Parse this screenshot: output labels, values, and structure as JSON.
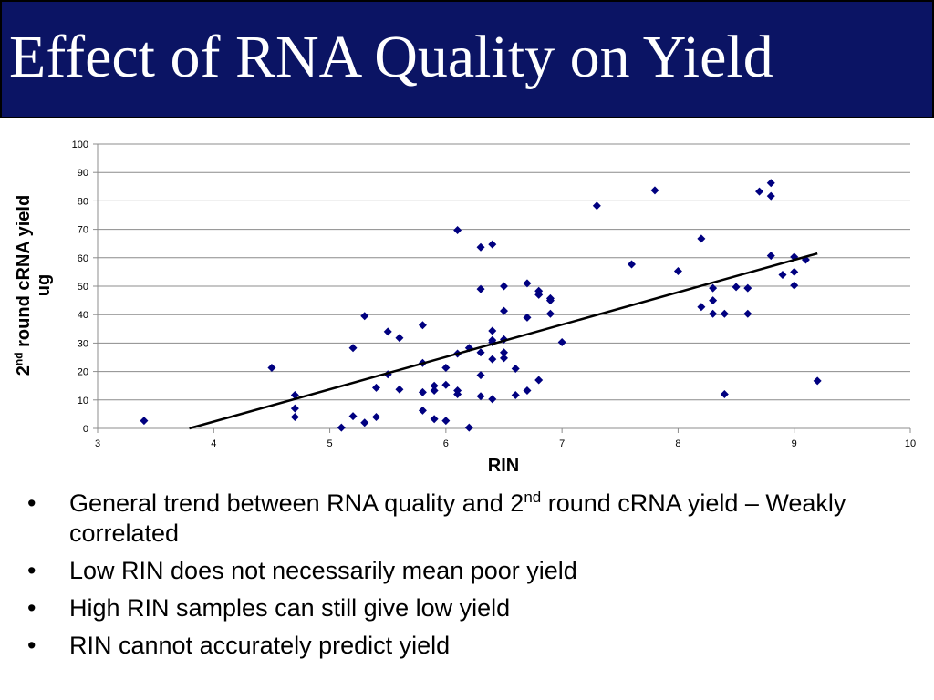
{
  "slide": {
    "title": "Effect of RNA Quality on Yield",
    "colors": {
      "title_bg": "#0b1464",
      "title_text": "#ffffff",
      "marker": "#000080",
      "trendline": "#000000"
    },
    "bullet_marker": "•",
    "bullets": [
      {
        "pre": "General trend between RNA quality and 2",
        "sup": "nd",
        "post": " round cRNA yield – Weakly correlated"
      },
      {
        "pre": "Low RIN does not necessarily mean poor yield"
      },
      {
        "pre": "High RIN samples can still give low yield"
      },
      {
        "pre": "RIN cannot accurately predict yield"
      }
    ]
  },
  "chart_data": {
    "type": "scatter",
    "title": "",
    "xlabel": "RIN",
    "ylabel_parts": {
      "pre": "2",
      "sup": "nd",
      "post": " round cRNA yield",
      "line2": "ug"
    },
    "xlim": [
      3,
      10
    ],
    "ylim": [
      0,
      100
    ],
    "xticks": [
      3,
      4,
      5,
      6,
      7,
      8,
      9,
      10
    ],
    "yticks": [
      0,
      10,
      20,
      30,
      40,
      50,
      60,
      70,
      80,
      90,
      100
    ],
    "grid": "horizontal",
    "legend": "none",
    "marker": "diamond",
    "trendline": {
      "type": "linear",
      "x": [
        3.79,
        9.2
      ],
      "y": [
        0,
        61.5
      ]
    },
    "points": [
      [
        3.4,
        2.7
      ],
      [
        4.5,
        21.3
      ],
      [
        4.7,
        11.7
      ],
      [
        4.7,
        7.0
      ],
      [
        4.7,
        4.0
      ],
      [
        5.1,
        0.3
      ],
      [
        5.2,
        28.3
      ],
      [
        5.2,
        4.3
      ],
      [
        5.3,
        39.5
      ],
      [
        5.3,
        2.0
      ],
      [
        5.4,
        14.3
      ],
      [
        5.4,
        4.0
      ],
      [
        5.5,
        34.0
      ],
      [
        5.5,
        19.0
      ],
      [
        5.6,
        31.8
      ],
      [
        5.6,
        13.7
      ],
      [
        5.8,
        36.3
      ],
      [
        5.8,
        23.0
      ],
      [
        5.8,
        12.7
      ],
      [
        5.8,
        6.3
      ],
      [
        5.9,
        15.0
      ],
      [
        5.9,
        13.3
      ],
      [
        5.9,
        3.3
      ],
      [
        6.0,
        21.3
      ],
      [
        6.0,
        15.3
      ],
      [
        6.0,
        2.7
      ],
      [
        6.1,
        69.7
      ],
      [
        6.1,
        26.3
      ],
      [
        6.1,
        13.3
      ],
      [
        6.1,
        12.0
      ],
      [
        6.2,
        28.3
      ],
      [
        6.2,
        0.3
      ],
      [
        6.3,
        63.7
      ],
      [
        6.3,
        49.0
      ],
      [
        6.3,
        26.7
      ],
      [
        6.3,
        18.7
      ],
      [
        6.3,
        11.3
      ],
      [
        6.4,
        64.7
      ],
      [
        6.4,
        34.3
      ],
      [
        6.4,
        31.0
      ],
      [
        6.4,
        30.3
      ],
      [
        6.4,
        24.3
      ],
      [
        6.4,
        10.3
      ],
      [
        6.5,
        50.0
      ],
      [
        6.5,
        41.3
      ],
      [
        6.5,
        31.3
      ],
      [
        6.5,
        26.7
      ],
      [
        6.5,
        24.7
      ],
      [
        6.6,
        21.0
      ],
      [
        6.6,
        11.7
      ],
      [
        6.7,
        51.0
      ],
      [
        6.7,
        39.0
      ],
      [
        6.7,
        13.3
      ],
      [
        6.8,
        48.3
      ],
      [
        6.8,
        47.0
      ],
      [
        6.8,
        17.0
      ],
      [
        6.9,
        45.7
      ],
      [
        6.9,
        45.0
      ],
      [
        6.9,
        40.3
      ],
      [
        7.0,
        30.3
      ],
      [
        7.3,
        78.3
      ],
      [
        7.6,
        57.7
      ],
      [
        7.8,
        83.7
      ],
      [
        8.0,
        55.3
      ],
      [
        8.2,
        66.7
      ],
      [
        8.2,
        42.7
      ],
      [
        8.3,
        49.3
      ],
      [
        8.3,
        45.0
      ],
      [
        8.3,
        40.3
      ],
      [
        8.4,
        40.3
      ],
      [
        8.4,
        12.0
      ],
      [
        8.5,
        49.7
      ],
      [
        8.6,
        49.3
      ],
      [
        8.6,
        40.3
      ],
      [
        8.7,
        83.3
      ],
      [
        8.8,
        86.3
      ],
      [
        8.8,
        81.7
      ],
      [
        8.8,
        60.7
      ],
      [
        8.9,
        54.0
      ],
      [
        9.0,
        60.3
      ],
      [
        9.0,
        55.0
      ],
      [
        9.0,
        50.3
      ],
      [
        9.1,
        59.3
      ],
      [
        9.2,
        16.7
      ]
    ]
  }
}
